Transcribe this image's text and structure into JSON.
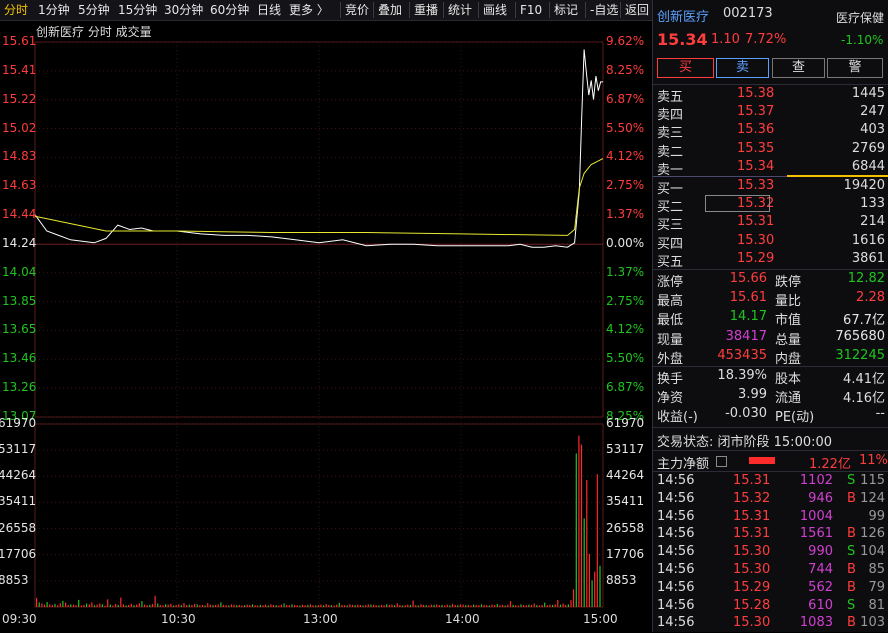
{
  "toolbar": {
    "tabs": [
      "分时",
      "1分钟",
      "5分钟",
      "15分钟",
      "30分钟",
      "60分钟",
      "日线",
      "更多 〉"
    ],
    "tools": [
      "竞价",
      "叠加",
      "重播",
      "统计",
      "画线",
      "F10",
      "标记",
      "-自选",
      "返回"
    ]
  },
  "chart": {
    "caption": "创新医疗   分时   成交量",
    "price_labels": [
      "15.61",
      "15.41",
      "15.22",
      "15.02",
      "14.83",
      "14.63",
      "14.44",
      "14.24",
      "14.04",
      "13.85",
      "13.65",
      "13.46",
      "13.26",
      "13.07"
    ],
    "pct_labels": [
      "9.62%",
      "8.25%",
      "6.87%",
      "5.50%",
      "4.12%",
      "2.75%",
      "1.37%",
      "0.00%",
      "1.37%",
      "2.75%",
      "4.12%",
      "5.50%",
      "6.87%",
      "8.25%"
    ],
    "vol_labels_left": [
      "61970",
      "53117",
      "44264",
      "35411",
      "26558",
      "17706",
      "8853"
    ],
    "vol_labels_right": [
      "61970",
      "53117",
      "44264",
      "35411",
      "26558",
      "17706",
      "8853"
    ],
    "x_labels": [
      "09:30",
      "10:30",
      "13:00",
      "14:00",
      "15:00"
    ]
  },
  "chart_data": {
    "type": "line",
    "title": "创新医疗 分时 成交量",
    "prev_close": 14.24,
    "ylim_price": [
      13.07,
      15.61
    ],
    "series": [
      {
        "name": "price",
        "x_minutes": [
          0,
          5,
          10,
          15,
          20,
          25,
          30,
          35,
          40,
          45,
          50,
          55,
          60,
          70,
          80,
          90,
          100,
          110,
          120,
          130,
          140,
          150,
          160,
          170,
          180,
          190,
          200,
          205,
          210,
          215,
          220,
          225,
          228,
          230,
          231,
          232,
          233,
          234,
          235,
          236,
          237,
          238,
          239,
          240
        ],
        "values": [
          14.44,
          14.33,
          14.3,
          14.27,
          14.26,
          14.25,
          14.28,
          14.37,
          14.34,
          14.35,
          14.33,
          14.33,
          14.33,
          14.31,
          14.3,
          14.3,
          14.29,
          14.27,
          14.25,
          14.27,
          14.23,
          14.24,
          14.24,
          14.23,
          14.23,
          14.23,
          14.23,
          14.24,
          14.22,
          14.22,
          14.23,
          14.22,
          14.25,
          14.6,
          15.1,
          15.56,
          15.4,
          15.25,
          15.35,
          15.22,
          15.38,
          15.28,
          15.34,
          15.34
        ]
      },
      {
        "name": "avg",
        "x_minutes": [
          0,
          30,
          60,
          100,
          140,
          180,
          225,
          228,
          230,
          232,
          235,
          240
        ],
        "values": [
          14.43,
          14.33,
          14.33,
          14.32,
          14.32,
          14.31,
          14.3,
          14.34,
          14.62,
          14.72,
          14.78,
          14.82
        ]
      }
    ],
    "volume": {
      "ylim": [
        0,
        61970
      ],
      "values": [
        3000,
        1600,
        1200,
        800,
        1700,
        900,
        700,
        1100,
        600,
        1300,
        2100,
        1500,
        700,
        900,
        800,
        600,
        2400,
        500,
        700,
        1200,
        900,
        1600,
        600,
        800,
        1200,
        900,
        400,
        2600,
        800,
        500,
        1000,
        700,
        3200,
        900,
        500,
        700,
        1100,
        600,
        800,
        1300,
        2000,
        800,
        600,
        700,
        1000,
        3800,
        1200,
        700,
        600,
        900,
        800,
        1100,
        500,
        700,
        900,
        600,
        1400,
        600,
        800,
        700,
        1100,
        900,
        600,
        700,
        500,
        1300,
        800,
        600,
        700,
        900,
        1600,
        700,
        600,
        500,
        900,
        800,
        600,
        700,
        500,
        600,
        800,
        700,
        900,
        600,
        500,
        700,
        600,
        800,
        500,
        900,
        700,
        600,
        500,
        800,
        1200,
        700,
        600,
        900,
        700,
        600,
        500,
        800,
        600,
        700,
        900,
        600,
        500,
        700,
        800,
        600,
        1000,
        700,
        600,
        500,
        800,
        1400,
        700,
        600,
        500,
        900,
        700,
        600,
        800,
        700,
        500,
        600,
        900,
        800,
        700,
        600,
        500,
        700,
        600,
        900,
        700,
        800,
        600,
        1300,
        700,
        500,
        600,
        800,
        700,
        2200,
        600,
        500,
        900,
        700,
        600,
        500,
        800,
        700,
        900,
        600,
        700,
        500,
        800,
        600,
        1100,
        700,
        600,
        900,
        800,
        600,
        700,
        500,
        800,
        700,
        600,
        900,
        700,
        600,
        500,
        800,
        700,
        1000,
        600,
        700,
        500,
        800,
        2000,
        700,
        600,
        500,
        900,
        700,
        600,
        800,
        700,
        1200,
        600,
        500,
        700,
        1500,
        600,
        800,
        700,
        900,
        2400,
        800,
        1200,
        700,
        900,
        2300,
        6000,
        52000,
        58000,
        55000,
        30000,
        43000,
        18000,
        9000,
        12000,
        45000,
        14000
      ]
    }
  },
  "panel": {
    "name": "创新医疗",
    "code": "002173",
    "sector": "医疗保健",
    "sector_pct": "-1.10%",
    "price": "15.34",
    "change": "1.10",
    "change_pct": "7.72%",
    "buttons": [
      "买",
      "卖",
      "查",
      "警"
    ],
    "asks": [
      {
        "label": "卖五",
        "price": "15.38",
        "vol": "1445"
      },
      {
        "label": "卖四",
        "price": "15.37",
        "vol": "247"
      },
      {
        "label": "卖三",
        "price": "15.36",
        "vol": "403"
      },
      {
        "label": "卖二",
        "price": "15.35",
        "vol": "2769"
      },
      {
        "label": "卖一",
        "price": "15.34",
        "vol": "6844"
      }
    ],
    "bids": [
      {
        "label": "买一",
        "price": "15.33",
        "vol": "19420"
      },
      {
        "label": "买二",
        "price": "15.32",
        "vol": "133"
      },
      {
        "label": "买三",
        "price": "15.31",
        "vol": "214"
      },
      {
        "label": "买四",
        "price": "15.30",
        "vol": "1616"
      },
      {
        "label": "买五",
        "price": "15.29",
        "vol": "3861"
      }
    ],
    "stats1": [
      {
        "k1": "涨停",
        "v1": "15.66",
        "c1": "up",
        "k2": "跌停",
        "v2": "12.82",
        "c2": "dn"
      },
      {
        "k1": "最高",
        "v1": "15.61",
        "c1": "up",
        "k2": "量比",
        "v2": "2.28",
        "c2": "up"
      },
      {
        "k1": "最低",
        "v1": "14.17",
        "c1": "dn",
        "k2": "市值",
        "v2": "67.7亿",
        "c2": "wh"
      },
      {
        "k1": "现量",
        "v1": "38417",
        "c1": "purple",
        "k2": "总量",
        "v2": "765680",
        "c2": "wh"
      },
      {
        "k1": "外盘",
        "v1": "453435",
        "c1": "up",
        "k2": "内盘",
        "v2": "312245",
        "c2": "dn"
      }
    ],
    "stats2": [
      {
        "k1": "换手",
        "v1": "18.39%",
        "k2": "股本",
        "v2": "4.41亿"
      },
      {
        "k1": "净资",
        "v1": "3.99",
        "k2": "流通",
        "v2": "4.16亿"
      },
      {
        "k1": "收益(-)",
        "v1": "-0.030",
        "k2": "PE(动)",
        "v2": "--"
      }
    ],
    "status": "交易状态: 闭市阶段 15:00:00",
    "mainflow_label": "主力净额",
    "mainflow_value": "1.22亿",
    "mainflow_pct": "11%",
    "ticks": [
      {
        "t": "14:56",
        "p": "15.31",
        "v": "1102",
        "s": "S",
        "n": "115"
      },
      {
        "t": "14:56",
        "p": "15.32",
        "v": "946",
        "s": "B",
        "n": "124"
      },
      {
        "t": "14:56",
        "p": "15.31",
        "v": "1004",
        "s": "",
        "n": "99"
      },
      {
        "t": "14:56",
        "p": "15.31",
        "v": "1561",
        "s": "B",
        "n": "126"
      },
      {
        "t": "14:56",
        "p": "15.30",
        "v": "990",
        "s": "S",
        "n": "104"
      },
      {
        "t": "14:56",
        "p": "15.30",
        "v": "744",
        "s": "B",
        "n": "85"
      },
      {
        "t": "14:56",
        "p": "15.29",
        "v": "562",
        "s": "B",
        "n": "79"
      },
      {
        "t": "14:56",
        "p": "15.28",
        "v": "610",
        "s": "S",
        "n": "81"
      },
      {
        "t": "14:56",
        "p": "15.30",
        "v": "1083",
        "s": "B",
        "n": "103"
      }
    ]
  },
  "colors": {
    "up": "#ff3d3d",
    "down": "#1fc51f",
    "avg": "#e8e830",
    "price": "#ffffff",
    "accent": "#f2c200"
  }
}
